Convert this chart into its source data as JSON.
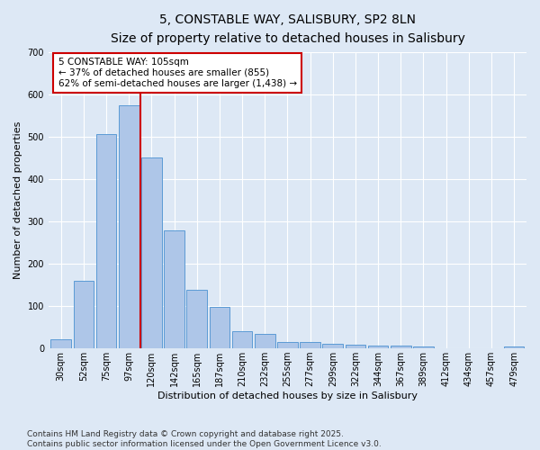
{
  "title": "5, CONSTABLE WAY, SALISBURY, SP2 8LN",
  "subtitle": "Size of property relative to detached houses in Salisbury",
  "xlabel": "Distribution of detached houses by size in Salisbury",
  "ylabel": "Number of detached properties",
  "categories": [
    "30sqm",
    "52sqm",
    "75sqm",
    "97sqm",
    "120sqm",
    "142sqm",
    "165sqm",
    "187sqm",
    "210sqm",
    "232sqm",
    "255sqm",
    "277sqm",
    "299sqm",
    "322sqm",
    "344sqm",
    "367sqm",
    "389sqm",
    "412sqm",
    "434sqm",
    "457sqm",
    "479sqm"
  ],
  "values": [
    22,
    160,
    505,
    575,
    450,
    278,
    138,
    99,
    40,
    35,
    15,
    15,
    12,
    9,
    6,
    6,
    5,
    1,
    0,
    0,
    4
  ],
  "bar_color": "#aec6e8",
  "bar_edge_color": "#5b9bd5",
  "background_color": "#dde8f5",
  "grid_color": "#ffffff",
  "property_line_x": 3.5,
  "annotation_line1": "5 CONSTABLE WAY: 105sqm",
  "annotation_line2": "← 37% of detached houses are smaller (855)",
  "annotation_line3": "62% of semi-detached houses are larger (1,438) →",
  "annotation_box_color": "#ffffff",
  "annotation_box_edge_color": "#cc0000",
  "vline_color": "#cc0000",
  "footnote1": "Contains HM Land Registry data © Crown copyright and database right 2025.",
  "footnote2": "Contains public sector information licensed under the Open Government Licence v3.0.",
  "ylim": [
    0,
    700
  ],
  "yticks": [
    0,
    100,
    200,
    300,
    400,
    500,
    600,
    700
  ],
  "title_fontsize": 10,
  "subtitle_fontsize": 8.5,
  "xlabel_fontsize": 8,
  "ylabel_fontsize": 8,
  "tick_fontsize": 7,
  "annotation_fontsize": 7.5,
  "footnote_fontsize": 6.5
}
